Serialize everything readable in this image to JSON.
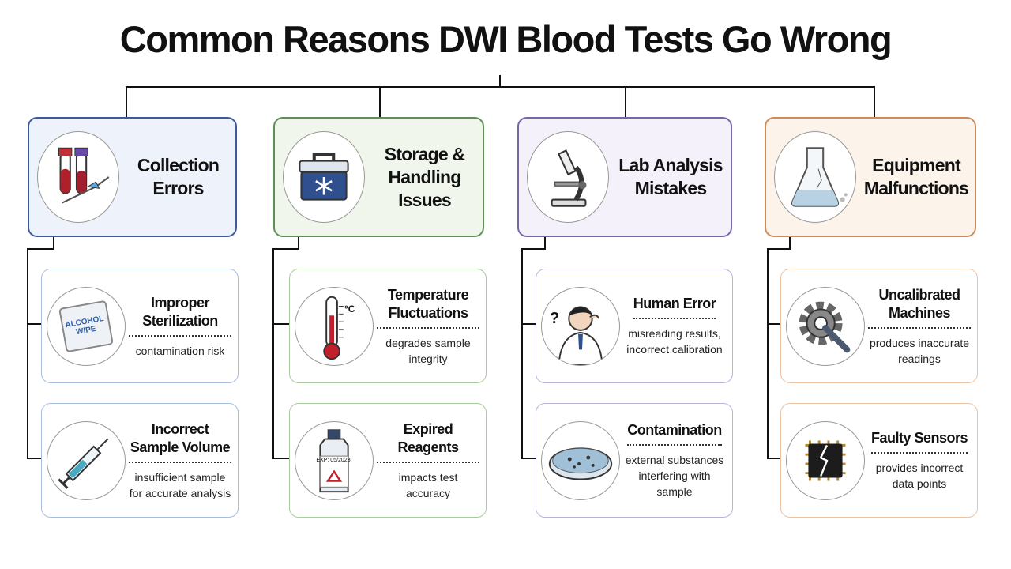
{
  "title": "Common Reasons DWI Blood Tests Go Wrong",
  "categories": [
    {
      "title": "Collection Errors",
      "cards": [
        {
          "title": "Improper Sterilization",
          "description": "contamination risk",
          "icon_label": "ALCOHOL WIPE"
        },
        {
          "title": "Incorrect Sample Volume",
          "description": "insufficient sample for accurate analysis"
        }
      ]
    },
    {
      "title": "Storage & Handling Issues",
      "cards": [
        {
          "title": "Temperature Fluctuations",
          "description": "degrades sample integrity",
          "icon_label": "°C"
        },
        {
          "title": "Expired Reagents",
          "description": "impacts test accuracy",
          "icon_label": "EXP: 05/2023"
        }
      ]
    },
    {
      "title": "Lab Analysis Mistakes",
      "cards": [
        {
          "title": "Human Error",
          "description": "misreading results, incorrect calibration",
          "icon_label": "?"
        },
        {
          "title": "Contamination",
          "description": "external substances interfering with sample"
        }
      ]
    },
    {
      "title": "Equipment Malfunctions",
      "cards": [
        {
          "title": "Uncalibrated Machines",
          "description": "produces inaccurate readings"
        },
        {
          "title": "Faulty Sensors",
          "description": "provides incorrect data points"
        }
      ]
    }
  ]
}
